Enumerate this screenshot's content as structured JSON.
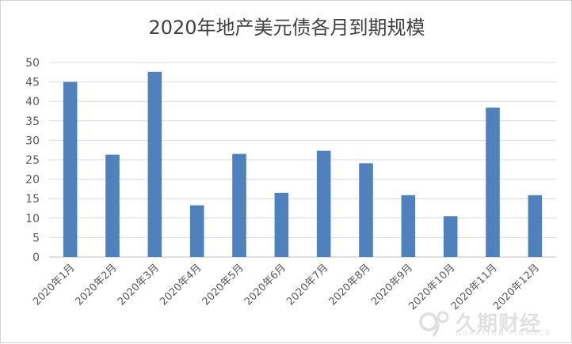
{
  "chart_data": {
    "type": "bar",
    "title": "2020年地产美元债各月到期规模",
    "xlabel": "",
    "ylabel": "",
    "ylim": [
      0,
      50
    ],
    "yticks": [
      0,
      5,
      10,
      15,
      20,
      25,
      30,
      35,
      40,
      45,
      50
    ],
    "grid": true,
    "legend": "none",
    "bar_color": "#4f81bd",
    "categories": [
      "2020年1月",
      "2020年2月",
      "2020年3月",
      "2020年4月",
      "2020年5月",
      "2020年6月",
      "2020年7月",
      "2020年8月",
      "2020年9月",
      "2020年10月",
      "2020年11月",
      "2020年12月"
    ],
    "values": [
      45.0,
      26.3,
      47.6,
      13.3,
      26.5,
      16.5,
      27.3,
      24.1,
      15.9,
      10.5,
      38.4,
      15.9
    ]
  },
  "watermark": {
    "text_cn": "久期财经",
    "text_en": "DURATION FINANCE",
    "icon": "duration-finance-logo-icon"
  }
}
